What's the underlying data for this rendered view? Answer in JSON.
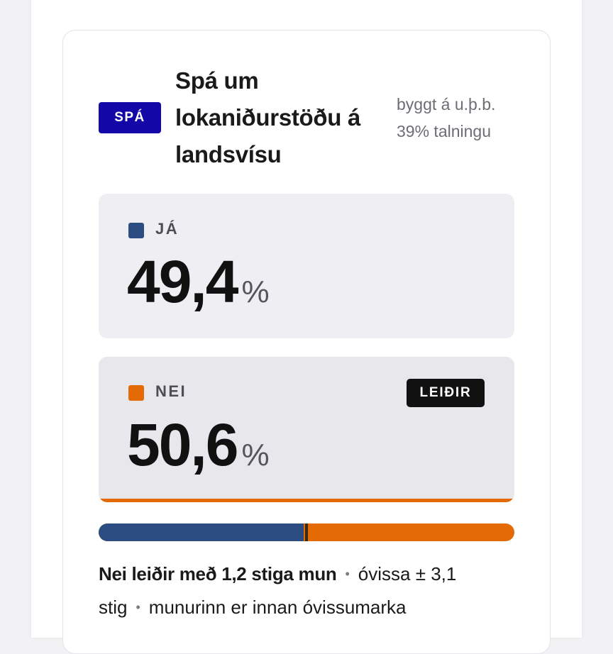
{
  "forecast": {
    "badge": "SPÁ",
    "title": "Spá um lokaniðurstöðu á landsvísu",
    "subtitle": "byggt á u.þ.b. 39% talningu"
  },
  "results": {
    "ja": {
      "label": "JÁ",
      "value": "49,4",
      "unit": "%",
      "share": 49.4,
      "color": "#2b4d82"
    },
    "nei": {
      "label": "NEI",
      "value": "50,6",
      "unit": "%",
      "share": 50.6,
      "color": "#e46a05",
      "leader_badge": "LEIÐIR"
    }
  },
  "bar": {
    "midpoint": 50
  },
  "summary": {
    "lead": "Nei leiðir með 1,2 stiga mun",
    "uncertainty": "óvissa ± 3,1 stig",
    "note": "munurinn er innan óvissumarka"
  }
}
